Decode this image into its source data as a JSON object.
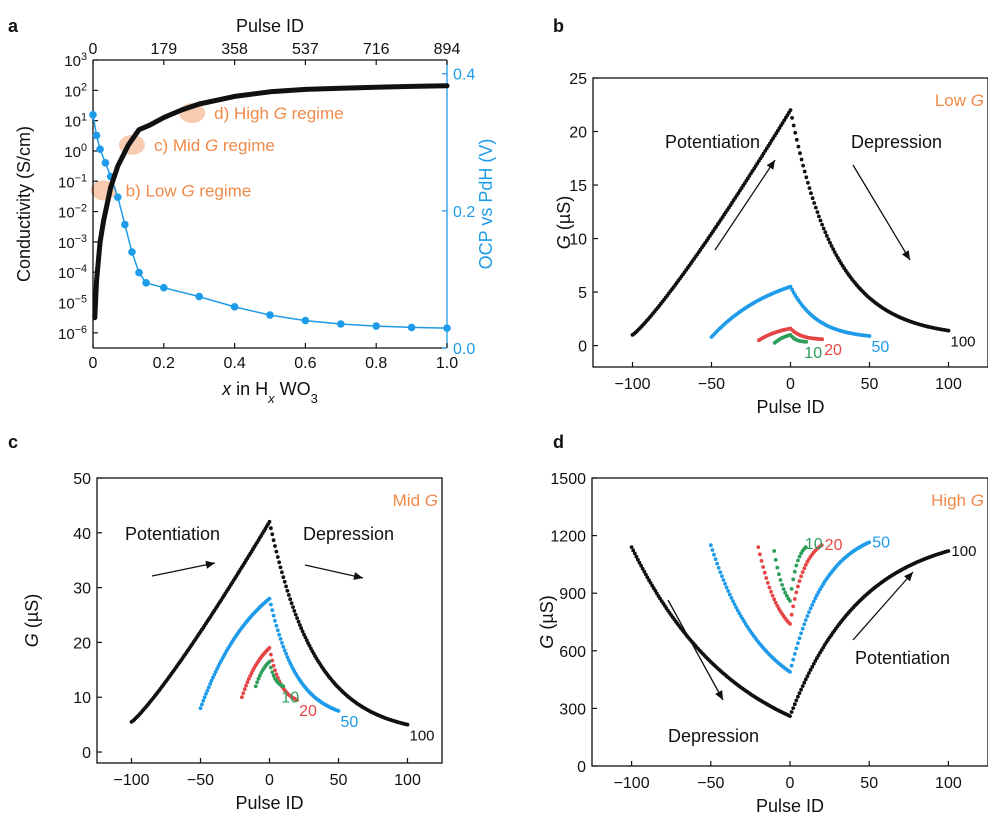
{
  "colors": {
    "black": "#111111",
    "blue": "#1E9BE9",
    "red": "#E64545",
    "green": "#2E9E5B",
    "orange": "#F08A4B",
    "regime": "#F6C6A8"
  },
  "chart_data": [
    {
      "id": "a",
      "panel_label": "a",
      "type": "scatter",
      "xlabel_italic": "x",
      "xlabel_rest_1": " in H",
      "xlabel_sub": "x",
      "xlabel_rest_2": " WO",
      "xlabel_sub2": "3",
      "ylabel_left": "Conductivity (S/cm)",
      "ylabel_right": "OCP vs PdH (V)",
      "top_label": "Pulse ID",
      "xlim": [
        0,
        1.0
      ],
      "xticks": [
        0,
        0.2,
        0.4,
        0.6,
        0.8,
        1.0
      ],
      "xtick_labels": [
        "0",
        "0.2",
        "0.4",
        "0.6",
        "0.8",
        "1.0"
      ],
      "top_ticks": [
        0,
        0.2,
        0.4,
        0.6,
        0.8,
        1.0
      ],
      "top_tick_labels": [
        "0",
        "179",
        "358",
        "537",
        "716",
        "894"
      ],
      "ylim_left_log10": [
        -6.5,
        3
      ],
      "yticks_left_exp": [
        3,
        2,
        1,
        0,
        -1,
        -2,
        -3,
        -4,
        -5,
        -6
      ],
      "ylim_right": [
        0,
        0.42
      ],
      "yticks_right": [
        0.0,
        0.2,
        0.4
      ],
      "ytick_right_labels": [
        "0.0",
        "0.2",
        "0.4"
      ],
      "conductivity_series": {
        "name": "Conductivity",
        "color": "black",
        "x": [
          0.005,
          0.01,
          0.02,
          0.03,
          0.05,
          0.07,
          0.1,
          0.13,
          0.16,
          0.2,
          0.25,
          0.3,
          0.4,
          0.5,
          0.6,
          0.7,
          0.8,
          0.9,
          1.0
        ],
        "log10_y": [
          -5.5,
          -4.3,
          -3.0,
          -2.3,
          -1.2,
          -0.5,
          0.2,
          0.7,
          0.85,
          1.1,
          1.35,
          1.55,
          1.8,
          1.95,
          2.03,
          2.07,
          2.1,
          2.13,
          2.15
        ]
      },
      "ocp_series": {
        "name": "OCP vs PdH",
        "color": "blue",
        "x": [
          0.0,
          0.01,
          0.02,
          0.035,
          0.05,
          0.07,
          0.09,
          0.11,
          0.13,
          0.15,
          0.2,
          0.3,
          0.4,
          0.5,
          0.6,
          0.7,
          0.8,
          0.9,
          1.0
        ],
        "y": [
          0.34,
          0.31,
          0.29,
          0.27,
          0.25,
          0.22,
          0.18,
          0.14,
          0.11,
          0.095,
          0.088,
          0.075,
          0.06,
          0.048,
          0.04,
          0.035,
          0.032,
          0.03,
          0.029
        ]
      },
      "regimes": [
        {
          "label_prefix": "b) Low ",
          "label_italic": "G",
          "label_suffix": " regime",
          "x": 0.03,
          "log10_y": -1.3
        },
        {
          "label_prefix": "c) Mid ",
          "label_italic": "G",
          "label_suffix": " regime",
          "x": 0.11,
          "log10_y": 0.2
        },
        {
          "label_prefix": "d) High ",
          "label_italic": "G",
          "label_suffix": " regime",
          "x": 0.28,
          "log10_y": 1.25
        }
      ]
    },
    {
      "id": "b",
      "panel_label": "b",
      "type": "scatter",
      "corner_prefix": "Low ",
      "corner_italic": "G",
      "ylabel_italic": "G",
      "ylabel_rest": " (µS)",
      "xlabel": "Pulse ID",
      "xlim": [
        -125,
        125
      ],
      "ylim": [
        -2,
        25
      ],
      "xticks": [
        -100,
        -50,
        0,
        50,
        100
      ],
      "xtick_labels": [
        "−100",
        "−50",
        "0",
        "50",
        "100"
      ],
      "yticks": [
        0,
        5,
        10,
        15,
        20,
        25
      ],
      "ytick_labels": [
        "0",
        "5",
        "10",
        "15",
        "20",
        "25"
      ],
      "potentiation_label": "Potentiation",
      "depression_label": "Depression",
      "series": [
        {
          "name": "100",
          "color": "black",
          "n": 100,
          "g_min": 1.0,
          "g_peak": 22.0,
          "g_end": 1.4,
          "pot_shape": "linear",
          "dep_k": 3.5
        },
        {
          "name": "50",
          "color": "blue",
          "n": 50,
          "g_min": 0.8,
          "g_peak": 5.5,
          "g_end": 0.9,
          "pot_shape": "convex",
          "dep_k": 3
        },
        {
          "name": "20",
          "color": "red",
          "n": 20,
          "g_min": 0.5,
          "g_peak": 1.6,
          "g_end": 0.6,
          "pot_shape": "convex",
          "dep_k": 3
        },
        {
          "name": "10",
          "color": "green",
          "n": 10,
          "g_min": 0.25,
          "g_peak": 1.0,
          "g_end": 0.35,
          "pot_shape": "convex",
          "dep_k": 3
        }
      ]
    },
    {
      "id": "c",
      "panel_label": "c",
      "type": "scatter",
      "corner_prefix": "Mid ",
      "corner_italic": "G",
      "ylabel_italic": "G",
      "ylabel_rest": " (µS)",
      "xlabel": "Pulse ID",
      "xlim": [
        -125,
        125
      ],
      "ylim": [
        -2,
        50
      ],
      "xticks": [
        -100,
        -50,
        0,
        50,
        100
      ],
      "xtick_labels": [
        "−100",
        "−50",
        "0",
        "50",
        "100"
      ],
      "yticks": [
        0,
        10,
        20,
        30,
        40,
        50
      ],
      "ytick_labels": [
        "0",
        "10",
        "20",
        "30",
        "40",
        "50"
      ],
      "potentiation_label": "Potentiation",
      "depression_label": "Depression",
      "series": [
        {
          "name": "100",
          "color": "black",
          "n": 100,
          "g_min": 5.5,
          "g_peak": 42.0,
          "g_end": 5.0,
          "pot_shape": "linear",
          "dep_k": 3
        },
        {
          "name": "50",
          "color": "blue",
          "n": 50,
          "g_min": 8.0,
          "g_peak": 28.0,
          "g_end": 7.5,
          "pot_shape": "convex",
          "dep_k": 2.5
        },
        {
          "name": "20",
          "color": "red",
          "n": 20,
          "g_min": 10.0,
          "g_peak": 19.0,
          "g_end": 9.5,
          "pot_shape": "convex",
          "dep_k": 2.5
        },
        {
          "name": "10",
          "color": "green",
          "n": 10,
          "g_min": 12.0,
          "g_peak": 16.5,
          "g_end": 12.0,
          "pot_shape": "convex",
          "dep_k": 2.5
        }
      ]
    },
    {
      "id": "d",
      "panel_label": "d",
      "type": "scatter",
      "corner_prefix": "High ",
      "corner_italic": "G",
      "ylabel_italic": "G",
      "ylabel_rest": " (µS)",
      "xlabel": "Pulse ID",
      "xlim": [
        -125,
        125
      ],
      "ylim": [
        0,
        1500
      ],
      "xticks": [
        -100,
        -50,
        0,
        50,
        100
      ],
      "xtick_labels": [
        "−100",
        "−50",
        "0",
        "50",
        "100"
      ],
      "yticks": [
        0,
        300,
        600,
        900,
        1200,
        1500
      ],
      "ytick_labels": [
        "0",
        "300",
        "600",
        "900",
        "1200",
        "1500"
      ],
      "potentiation_label": "Potentiation",
      "depression_label": "Depression",
      "series": [
        {
          "name": "100",
          "color": "black",
          "n": 100,
          "g_start": 1140,
          "g_min": 260,
          "g_end": 1120,
          "dep_k": 1.5,
          "pot_k": 2.2
        },
        {
          "name": "50",
          "color": "blue",
          "n": 50,
          "g_start": 1150,
          "g_min": 490,
          "g_end": 1165,
          "dep_k": 1.5,
          "pot_k": 2.2
        },
        {
          "name": "20",
          "color": "red",
          "n": 20,
          "g_start": 1140,
          "g_min": 740,
          "g_end": 1150,
          "dep_k": 1.5,
          "pot_k": 2.2
        },
        {
          "name": "10",
          "color": "green",
          "n": 10,
          "g_start": 1120,
          "g_min": 860,
          "g_end": 1140,
          "dep_k": 1.5,
          "pot_k": 2.2
        }
      ]
    }
  ]
}
